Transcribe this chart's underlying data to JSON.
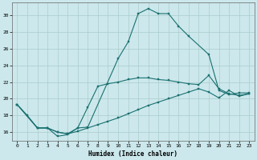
{
  "xlabel": "Humidex (Indice chaleur)",
  "bg_color": "#cce8ec",
  "grid_color": "#aacccc",
  "line_color": "#1a7070",
  "xlim": [
    -0.5,
    23.5
  ],
  "ylim": [
    15.0,
    31.5
  ],
  "xticks": [
    0,
    1,
    2,
    3,
    4,
    5,
    6,
    7,
    8,
    9,
    10,
    11,
    12,
    13,
    14,
    15,
    16,
    17,
    18,
    19,
    20,
    21,
    22,
    23
  ],
  "yticks": [
    16,
    18,
    20,
    22,
    24,
    26,
    28,
    30
  ],
  "line1_x": [
    0,
    1,
    2,
    3,
    4,
    5,
    6,
    7,
    10,
    11,
    12,
    13,
    14,
    15,
    16,
    17,
    19,
    20,
    21,
    22,
    23
  ],
  "line1_y": [
    19.3,
    18.0,
    16.5,
    16.5,
    15.5,
    15.7,
    16.5,
    16.6,
    24.8,
    26.8,
    30.2,
    30.8,
    30.2,
    30.2,
    28.7,
    27.5,
    25.3,
    21.0,
    20.5,
    20.7,
    20.7
  ],
  "line2_x": [
    0,
    2,
    3,
    4,
    5,
    6,
    7,
    8,
    9,
    10,
    11,
    12,
    13,
    14,
    15,
    16,
    17,
    18,
    19,
    20,
    21,
    22,
    23
  ],
  "line2_y": [
    19.3,
    16.5,
    16.5,
    16.0,
    15.8,
    16.5,
    19.0,
    21.5,
    21.8,
    22.0,
    22.3,
    22.5,
    22.5,
    22.3,
    22.2,
    22.0,
    21.8,
    21.7,
    22.8,
    21.2,
    20.6,
    20.4,
    20.6
  ],
  "line3_x": [
    0,
    2,
    3,
    4,
    5,
    6,
    7,
    8,
    9,
    10,
    11,
    12,
    13,
    14,
    15,
    16,
    17,
    18,
    19,
    20,
    21,
    22,
    23
  ],
  "line3_y": [
    19.3,
    16.5,
    16.5,
    16.0,
    15.8,
    16.1,
    16.5,
    16.9,
    17.3,
    17.7,
    18.2,
    18.7,
    19.2,
    19.6,
    20.0,
    20.4,
    20.8,
    21.2,
    20.8,
    20.1,
    21.0,
    20.3,
    20.6
  ]
}
